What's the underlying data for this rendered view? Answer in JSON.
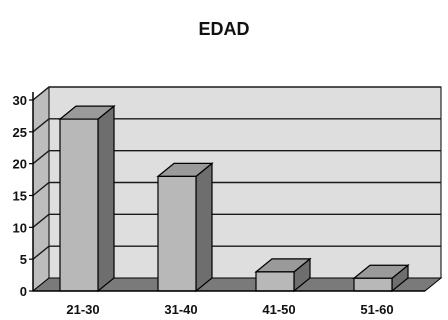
{
  "chart_data": {
    "type": "bar",
    "title": "EDAD",
    "categories": [
      "21-30",
      "31-40",
      "41-50",
      "51-60"
    ],
    "values": [
      27,
      18,
      3,
      2
    ],
    "ylim": [
      0,
      30
    ],
    "yticks": [
      "0",
      "5",
      "10",
      "15",
      "20",
      "25",
      "30"
    ],
    "grid": true,
    "legend": "none",
    "three_d": true
  },
  "colors": {
    "bar_front": "#b8b8b8",
    "bar_side": "#6e6e6e",
    "bar_top": "#9a9a9a",
    "back_wall": "#dedede",
    "side_wall": "#bdbdbd",
    "floor": "#7a7a7a",
    "grid": "#1a1a1a",
    "axis": "#000000"
  }
}
